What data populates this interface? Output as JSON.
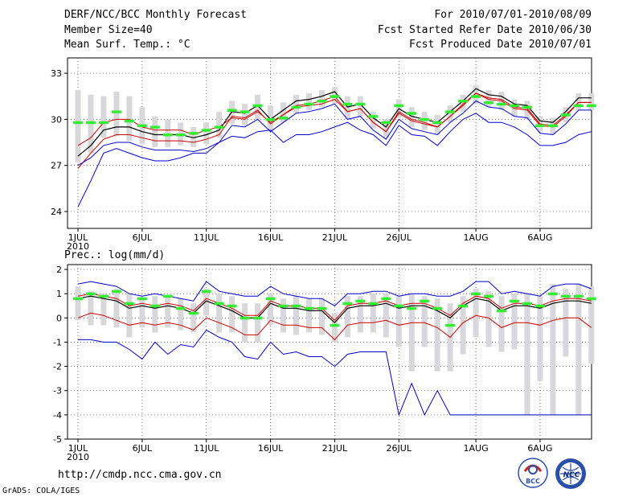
{
  "header": {
    "title": "DERF/NCC/BCC Monthly Forecast",
    "member_size": "Member Size=40",
    "period": "For 2010/07/01-2010/08/09",
    "refer_date": "Fcst Started Refer Date 2010/06/30",
    "produced_date": "Fcst Produced Date 2010/07/01"
  },
  "footer": {
    "url": "http://cmdp.ncc.cma.gov.cn",
    "grads": "GrADS: COLA/IGES"
  },
  "logos": {
    "bcc": "BCC",
    "ncc": "NCC"
  },
  "colors": {
    "ensemble_max_min": "#0000cc",
    "spread": "#cc0000",
    "mean": "#000000",
    "observed": "#33ee33",
    "members_box": "#d8d8da"
  },
  "chart_data": [
    {
      "type": "line",
      "title": "Mean Surf. Temp.: °C",
      "xlabel": "",
      "ylabel": "",
      "x_tick_labels": [
        "1JUL",
        "6JUL",
        "11JUL",
        "16JUL",
        "21JUL",
        "26JUL",
        "1AUG",
        "6AUG"
      ],
      "x_year_label": "2010",
      "x_tick_days": [
        0,
        5,
        10,
        15,
        20,
        25,
        31,
        36
      ],
      "ylim": [
        22.9,
        34.0
      ],
      "yticks": [
        24,
        27,
        30,
        33
      ],
      "grid": true,
      "series": [
        {
          "name": "max",
          "values": [
            24.3,
            26.0,
            27.8,
            28.1,
            27.8,
            27.5,
            27.3,
            27.3,
            27.5,
            27.8,
            27.8,
            28.5,
            28.9,
            28.8,
            29.2,
            29.3,
            28.5,
            29.0,
            29.0,
            29.2,
            29.5,
            29.8,
            29.3,
            29.0,
            28.3,
            29.6,
            29.0,
            28.9,
            28.3,
            29.2,
            30.0,
            30.4,
            29.8,
            29.8,
            29.5,
            29.0,
            28.3,
            28.3,
            28.5,
            29.0,
            29.2
          ]
        },
        {
          "name": "upper",
          "values": [
            28.3,
            28.8,
            29.8,
            30.0,
            30.0,
            29.5,
            29.3,
            29.3,
            29.3,
            29.0,
            29.3,
            29.5,
            30.1,
            30.0,
            30.5,
            29.8,
            30.3,
            30.8,
            30.9,
            31.0,
            31.3,
            30.5,
            30.7,
            29.8,
            29.2,
            30.5,
            30.0,
            29.8,
            29.5,
            30.2,
            31.0,
            31.7,
            31.4,
            31.3,
            30.8,
            30.7,
            29.7,
            29.6,
            30.3,
            31.1,
            31.1
          ]
        },
        {
          "name": "mean",
          "values": [
            27.6,
            28.3,
            29.3,
            29.5,
            29.5,
            29.2,
            29.0,
            29.0,
            29.0,
            28.8,
            29.0,
            29.3,
            30.5,
            30.4,
            30.9,
            30.0,
            30.6,
            31.2,
            31.3,
            31.5,
            31.8,
            30.8,
            31.0,
            30.1,
            29.5,
            30.7,
            30.2,
            30.0,
            29.8,
            30.5,
            31.2,
            32.0,
            31.6,
            31.5,
            31.0,
            30.9,
            29.9,
            29.8,
            30.5,
            31.4,
            31.4
          ]
        },
        {
          "name": "lower",
          "values": [
            26.8,
            27.8,
            28.7,
            29.0,
            29.0,
            28.8,
            28.6,
            28.6,
            28.6,
            28.5,
            28.7,
            29.0,
            30.2,
            30.1,
            30.6,
            29.7,
            30.3,
            30.9,
            31.0,
            31.2,
            31.5,
            30.5,
            30.7,
            29.8,
            29.2,
            30.4,
            29.9,
            29.7,
            29.5,
            30.2,
            30.9,
            31.7,
            31.3,
            31.2,
            30.7,
            30.6,
            29.6,
            29.5,
            30.2,
            31.1,
            31.1
          ]
        },
        {
          "name": "min",
          "values": [
            27.0,
            27.5,
            28.3,
            28.5,
            28.5,
            28.2,
            28.0,
            28.0,
            28.0,
            27.9,
            28.1,
            28.5,
            29.6,
            29.5,
            30.0,
            29.2,
            29.8,
            30.4,
            30.5,
            30.7,
            31.0,
            30.0,
            30.2,
            29.3,
            28.7,
            30.0,
            29.4,
            29.2,
            29.0,
            29.8,
            30.4,
            31.2,
            30.8,
            30.7,
            30.2,
            30.1,
            29.1,
            29.0,
            29.7,
            30.6,
            30.6
          ]
        },
        {
          "name": "observed",
          "values": [
            29.8,
            29.8,
            29.8,
            30.5,
            29.9,
            29.6,
            29.5,
            29.0,
            29.0,
            29.1,
            29.3,
            29.5,
            30.6,
            30.5,
            30.9,
            30.0,
            30.1,
            30.8,
            31.0,
            31.2,
            31.5,
            31.0,
            31.0,
            30.2,
            29.8,
            30.9,
            30.4,
            30.0,
            29.8,
            30.5,
            31.2,
            31.5,
            31.1,
            31.0,
            30.9,
            30.8,
            29.6,
            29.6,
            30.3,
            30.9,
            30.9
          ]
        }
      ],
      "box_low": [
        27.2,
        27.8,
        28.8,
        28.9,
        28.6,
        28.4,
        28.2,
        28.2,
        28.3,
        28.2,
        28.4,
        28.8,
        29.7,
        29.6,
        30.0,
        29.3,
        29.8,
        30.4,
        30.6,
        30.8,
        31.0,
        30.0,
        30.2,
        29.4,
        28.8,
        30.1,
        29.5,
        29.3,
        29.0,
        29.8,
        30.5,
        31.0,
        30.8,
        30.6,
        30.2,
        30.0,
        29.2,
        29.0,
        29.8,
        30.6,
        30.6
      ],
      "box_high": [
        31.9,
        31.6,
        31.5,
        31.8,
        31.5,
        30.8,
        30.2,
        30.0,
        29.8,
        29.5,
        29.8,
        30.5,
        31.2,
        31.0,
        31.6,
        30.9,
        31.1,
        31.6,
        31.7,
        31.9,
        32.1,
        31.5,
        31.5,
        30.5,
        30.0,
        31.3,
        30.8,
        30.5,
        30.3,
        30.9,
        31.6,
        32.2,
        31.9,
        31.8,
        31.3,
        31.2,
        30.2,
        30.1,
        30.8,
        31.7,
        31.7
      ]
    },
    {
      "type": "line",
      "title": "Prec.: log(mm/d)",
      "xlabel": "",
      "ylabel": "",
      "x_tick_labels": [
        "1JUL",
        "6JUL",
        "11JUL",
        "16JUL",
        "21JUL",
        "26JUL",
        "1AUG",
        "6AUG"
      ],
      "x_year_label": "2010",
      "x_tick_days": [
        0,
        5,
        10,
        15,
        20,
        25,
        31,
        36
      ],
      "ylim": [
        -5.0,
        2.2
      ],
      "yticks": [
        -5,
        -4,
        -3,
        -2,
        -1,
        0,
        1,
        2
      ],
      "grid": true,
      "series": [
        {
          "name": "max",
          "values": [
            1.4,
            1.5,
            1.4,
            1.3,
            1.0,
            0.9,
            1.0,
            0.9,
            0.8,
            0.7,
            1.5,
            1.1,
            1.0,
            0.9,
            0.9,
            1.3,
            1.0,
            0.9,
            0.8,
            0.8,
            0.5,
            1.0,
            1.0,
            1.1,
            1.1,
            0.9,
            1.0,
            1.0,
            0.9,
            0.9,
            1.1,
            1.5,
            1.5,
            1.0,
            1.1,
            1.0,
            0.9,
            1.3,
            1.4,
            1.4,
            1.2
          ]
        },
        {
          "name": "upper",
          "values": [
            0.9,
            1.0,
            0.9,
            0.8,
            0.5,
            0.6,
            0.5,
            0.6,
            0.5,
            0.3,
            0.8,
            0.6,
            0.4,
            0.1,
            0.1,
            0.7,
            0.5,
            0.5,
            0.4,
            0.4,
            -0.1,
            0.5,
            0.6,
            0.6,
            0.7,
            0.5,
            0.6,
            0.6,
            0.4,
            0.1,
            0.6,
            0.9,
            0.8,
            0.4,
            0.6,
            0.6,
            0.5,
            0.7,
            0.8,
            0.8,
            0.7
          ]
        },
        {
          "name": "mean",
          "values": [
            0.8,
            0.9,
            0.8,
            0.7,
            0.4,
            0.5,
            0.4,
            0.5,
            0.4,
            0.2,
            0.7,
            0.5,
            0.3,
            0.0,
            0.0,
            0.6,
            0.4,
            0.4,
            0.3,
            0.3,
            -0.2,
            0.4,
            0.5,
            0.5,
            0.6,
            0.4,
            0.5,
            0.5,
            0.3,
            0.0,
            0.5,
            0.8,
            0.7,
            0.3,
            0.5,
            0.5,
            0.4,
            0.6,
            0.7,
            0.7,
            0.6
          ]
        },
        {
          "name": "lower",
          "values": [
            0.0,
            0.2,
            0.1,
            -0.1,
            -0.3,
            -0.2,
            -0.3,
            -0.2,
            -0.3,
            -0.5,
            0.0,
            -0.2,
            -0.4,
            -0.7,
            -0.7,
            -0.1,
            -0.3,
            -0.3,
            -0.4,
            -0.4,
            -0.9,
            -0.3,
            -0.2,
            -0.2,
            -0.1,
            -0.3,
            -0.2,
            -0.2,
            -0.4,
            -0.8,
            -0.2,
            0.1,
            0.0,
            -0.4,
            -0.2,
            -0.2,
            -0.3,
            -0.1,
            0.0,
            0.0,
            -0.4
          ]
        },
        {
          "name": "min",
          "values": [
            -0.9,
            -0.9,
            -1.0,
            -1.0,
            -1.3,
            -1.7,
            -1.0,
            -1.5,
            -1.1,
            -1.2,
            -0.5,
            -0.8,
            -1.0,
            -1.6,
            -1.7,
            -1.0,
            -1.5,
            -1.4,
            -1.6,
            -1.6,
            -2.0,
            -1.5,
            -1.4,
            -1.4,
            -1.4,
            -4.0,
            -2.7,
            -4.0,
            -3.0,
            -4.0,
            -4.0,
            -4.0,
            -4.0,
            -4.0,
            -4.0,
            -4.0,
            -4.0,
            -4.0,
            -4.0,
            -4.0,
            -4.0
          ]
        },
        {
          "name": "observed",
          "values": [
            0.8,
            1.0,
            0.9,
            1.1,
            0.6,
            0.8,
            0.5,
            0.9,
            0.4,
            0.2,
            1.1,
            0.6,
            0.5,
            0.0,
            0.0,
            0.8,
            0.5,
            0.5,
            0.4,
            0.4,
            -0.3,
            0.6,
            0.7,
            0.6,
            0.8,
            0.5,
            0.4,
            0.7,
            0.4,
            -0.3,
            0.5,
            1.0,
            0.9,
            0.3,
            0.7,
            0.6,
            0.5,
            1.0,
            0.9,
            0.9,
            0.8
          ]
        }
      ],
      "box_low": [
        -0.1,
        -0.3,
        -0.3,
        -0.4,
        -0.8,
        -0.4,
        -0.6,
        -0.4,
        -0.5,
        -0.6,
        0.1,
        -0.6,
        -0.6,
        -1.0,
        -1.0,
        -0.3,
        -0.6,
        -0.7,
        -0.6,
        -0.7,
        -1.0,
        -0.8,
        -0.6,
        -0.6,
        -0.8,
        -1.2,
        -2.2,
        -1.2,
        -2.2,
        -2.2,
        -1.5,
        -0.8,
        -1.2,
        -1.4,
        -1.3,
        -4.0,
        -2.6,
        -4.0,
        -1.6,
        -4.0,
        -1.9
      ],
      "box_high": [
        1.3,
        1.1,
        1.0,
        1.2,
        1.0,
        0.8,
        0.9,
        0.9,
        0.8,
        0.6,
        1.2,
        1.0,
        0.9,
        0.6,
        0.6,
        1.0,
        0.8,
        0.9,
        0.8,
        0.8,
        0.2,
        0.9,
        0.9,
        1.0,
        1.0,
        0.9,
        1.0,
        0.9,
        0.8,
        0.6,
        0.9,
        1.2,
        1.1,
        0.9,
        1.0,
        1.0,
        0.9,
        1.4,
        1.2,
        1.4,
        1.3
      ]
    }
  ]
}
